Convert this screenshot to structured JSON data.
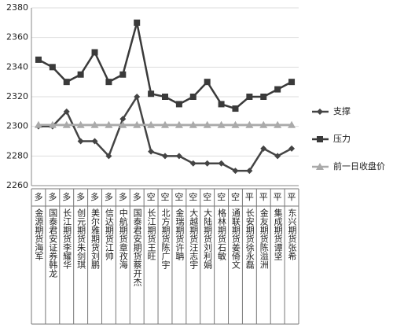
{
  "chart_data": {
    "type": "line",
    "stances": [
      "多",
      "多",
      "多",
      "多",
      "多",
      "多",
      "多",
      "多",
      "空",
      "空",
      "空",
      "空",
      "空",
      "空",
      "空",
      "平",
      "平",
      "平",
      "平"
    ],
    "categories": [
      "金源期货海军",
      "国泰君安证券韩龙",
      "长江期货李耀华",
      "创元期货朱剑琪",
      "美尔雅期货刘鹏",
      "信达期货江帅",
      "中航期货章孜海",
      "国泰君安期货蔡开杰",
      "长江期货王旺",
      "北方期货陈广宇",
      "金瑞期货许聃",
      "大越期货汪志宇",
      "大陆期货刘利娟",
      "格林期货石敏",
      "通联期货姜倚文",
      "长安期货徐永磊",
      "金友期货陈溢洲",
      "集成期货谭坚",
      "东兴期货张希"
    ],
    "series": [
      {
        "name": "支撑",
        "color": "#444444",
        "marker": "diamond",
        "values": [
          2300,
          2300,
          2310,
          2290,
          2290,
          2280,
          2305,
          2320,
          2283,
          2280,
          2280,
          2275,
          2275,
          2275,
          2270,
          2270,
          2285,
          2280,
          2285
        ]
      },
      {
        "name": "压力",
        "color": "#3a3a3a",
        "marker": "square",
        "values": [
          2345,
          2340,
          2330,
          2335,
          2350,
          2330,
          2335,
          2370,
          2322,
          2320,
          2315,
          2320,
          2330,
          2315,
          2312,
          2320,
          2320,
          2325,
          2330
        ]
      },
      {
        "name": "前一日收盘价",
        "color": "#aaaaaa",
        "marker": "triangle",
        "values": [
          2301,
          2301,
          2301,
          2301,
          2301,
          2301,
          2301,
          2301,
          2301,
          2301,
          2301,
          2301,
          2301,
          2301,
          2301,
          2301,
          2301,
          2301,
          2301
        ]
      }
    ],
    "ylim": [
      2260,
      2380
    ],
    "yticks": [
      2260,
      2280,
      2300,
      2320,
      2340,
      2360,
      2380
    ],
    "grid": true
  }
}
